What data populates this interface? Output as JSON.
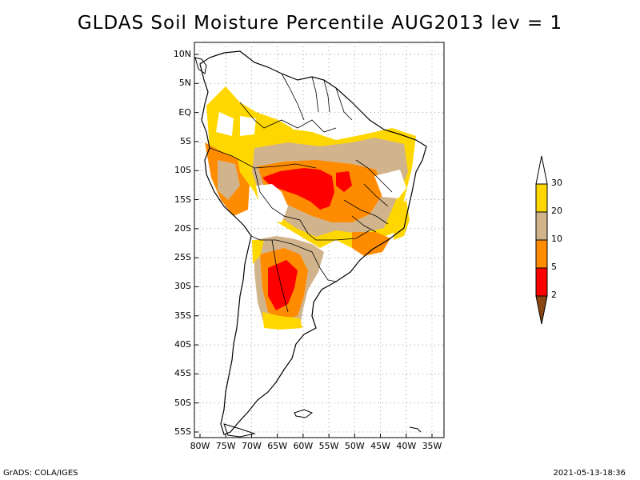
{
  "title": "GLDAS Soil Moisture Percentile AUG2013 lev = 1",
  "footer": {
    "left": "GrADS: COLA/IGES",
    "right": "2021-05-13-18:36"
  },
  "map": {
    "type": "map",
    "lat_labels": [
      "10N",
      "5N",
      "EQ",
      "5S",
      "10S",
      "15S",
      "20S",
      "25S",
      "30S",
      "35S",
      "40S",
      "45S",
      "50S",
      "55S"
    ],
    "lon_labels": [
      "80W",
      "75W",
      "70W",
      "65W",
      "60W",
      "55W",
      "50W",
      "45W",
      "40W",
      "35W"
    ],
    "lat_range": [
      -56,
      12
    ],
    "lon_range": [
      -81,
      -34
    ],
    "grid": "dotted",
    "region": "South America"
  },
  "colorbar": {
    "levels": [
      "2",
      "5",
      "10",
      "20",
      "30"
    ],
    "colors": {
      "below_2": "#8b4513",
      "2_5": "#ff0000",
      "5_10": "#ff8c00",
      "10_20": "#d2b48c",
      "20_30": "#ffd700",
      "above_30": "#ffffff"
    }
  },
  "anomaly_zones": [
    {
      "category": "20_30",
      "lon": -60,
      "lat": -7
    },
    {
      "category": "10_20",
      "lon": -52,
      "lat": -10
    },
    {
      "category": "5_10",
      "lon": -56,
      "lat": -13
    },
    {
      "category": "2_5",
      "lon": -57,
      "lat": -12
    },
    {
      "category": "2_5",
      "lon": -63,
      "lat": -30
    },
    {
      "category": "5_10",
      "lon": -62,
      "lat": -27
    }
  ]
}
